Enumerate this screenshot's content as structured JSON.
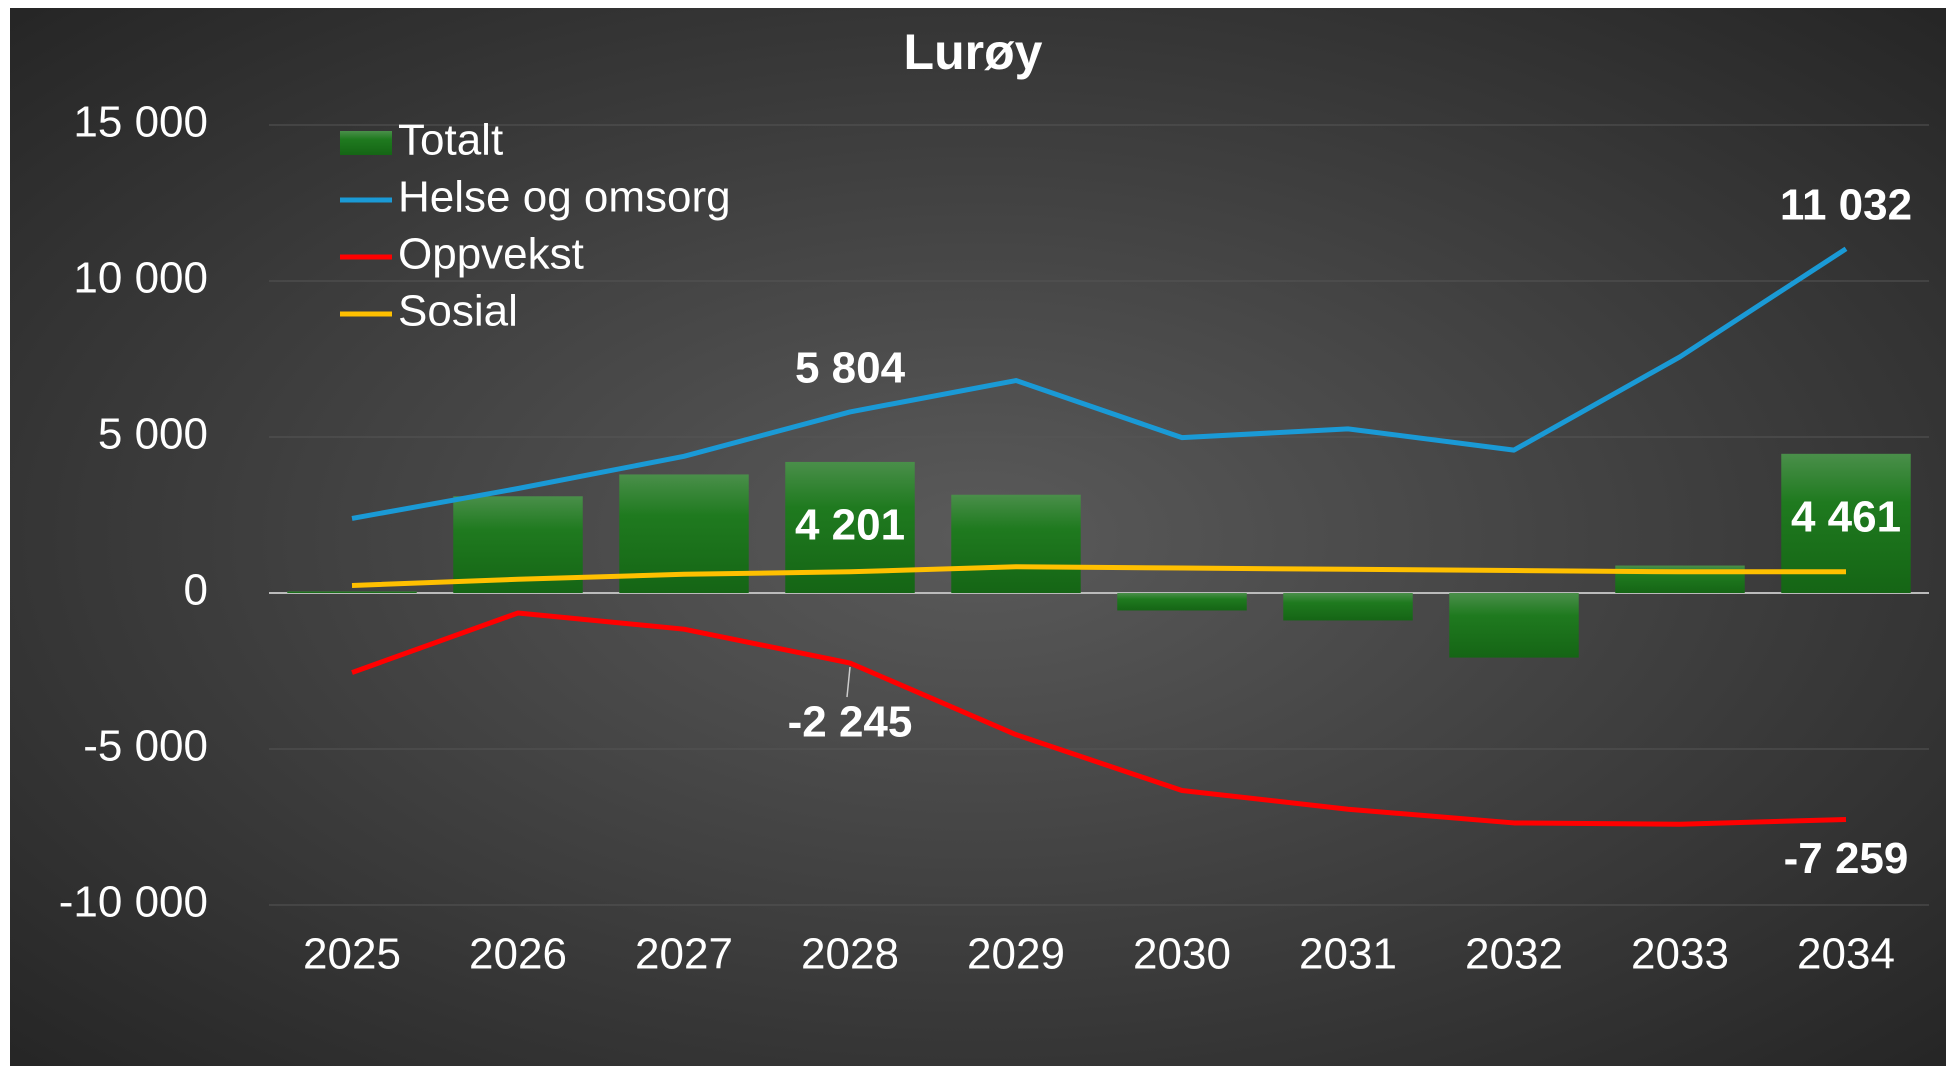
{
  "chart_data": {
    "type": "bar",
    "title": "Lurøy",
    "categories": [
      "2025",
      "2026",
      "2027",
      "2028",
      "2029",
      "2030",
      "2031",
      "2032",
      "2033",
      "2034"
    ],
    "series": [
      {
        "name": "Totalt",
        "type": "bar",
        "color": "#1f7a1f",
        "values": [
          50,
          3100,
          3800,
          4201,
          3150,
          -560,
          -880,
          -2070,
          880,
          4461
        ],
        "value_labels": [
          null,
          null,
          null,
          "4 201",
          null,
          null,
          null,
          null,
          null,
          "4 461"
        ]
      },
      {
        "name": "Helse og omsorg",
        "type": "line",
        "color": "#1a9ad6",
        "values": [
          2390,
          3350,
          4380,
          5804,
          6810,
          4980,
          5260,
          4580,
          7570,
          11032
        ],
        "value_labels": [
          null,
          null,
          null,
          "5 804",
          null,
          null,
          null,
          null,
          null,
          "11 032"
        ]
      },
      {
        "name": "Oppvekst",
        "type": "line",
        "color": "#ff0000",
        "values": [
          -2550,
          -640,
          -1160,
          -2245,
          -4540,
          -6330,
          -6930,
          -7370,
          -7410,
          -7259
        ],
        "value_labels": [
          null,
          null,
          null,
          "-2 245",
          null,
          null,
          null,
          null,
          null,
          "-7 259"
        ]
      },
      {
        "name": "Sosial",
        "type": "line",
        "color": "#ffc000",
        "values": [
          240,
          440,
          600,
          680,
          840,
          800,
          760,
          720,
          680,
          680
        ]
      }
    ],
    "ylim": [
      -10000,
      15000
    ],
    "yticks": [
      {
        "value": -10000,
        "label": "-10 000"
      },
      {
        "value": -5000,
        "label": "-5 000"
      },
      0,
      {
        "value": 5000,
        "label": "5 000"
      },
      {
        "value": 10000,
        "label": "10 000"
      },
      {
        "value": 15000,
        "label": "15 000"
      }
    ],
    "grid": true,
    "legend": "upper left"
  }
}
